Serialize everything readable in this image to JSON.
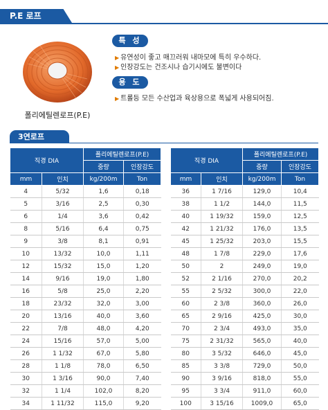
{
  "header": {
    "title": "P.E 로프"
  },
  "product": {
    "caption": "폴리에틸렌로프(P.E)"
  },
  "features": {
    "heading": "특 성",
    "bullets": [
      "유연성이 좋고 매끄러워 내마모에 특히 우수하다.",
      "인장강도는 건조시나 습기시에도 불변이다"
    ]
  },
  "usage": {
    "heading": "용 도",
    "bullets": [
      "트롤등 모든 수산업과 육상용으로 폭넓게 사용되어짐."
    ]
  },
  "section": {
    "title": "3연로프"
  },
  "table": {
    "headers": {
      "diameter": "직경 DIA",
      "material": "폴리에틸렌로프(P.E)",
      "weight": "중량",
      "strength": "인장강도",
      "mm": "mm",
      "inch": "인치",
      "weight_unit": "kg/200m",
      "strength_unit": "Ton"
    },
    "left_rows": [
      [
        "4",
        "5/32",
        "1,6",
        "0,18"
      ],
      [
        "5",
        "3/16",
        "2,5",
        "0,30"
      ],
      [
        "6",
        "1/4",
        "3,6",
        "0,42"
      ],
      [
        "8",
        "5/16",
        "6,4",
        "0,75"
      ],
      [
        "9",
        "3/8",
        "8,1",
        "0,91"
      ],
      [
        "10",
        "13/32",
        "10,0",
        "1,11"
      ],
      [
        "12",
        "15/32",
        "15,0",
        "1,20"
      ],
      [
        "14",
        "9/16",
        "19,0",
        "1,80"
      ],
      [
        "16",
        "5/8",
        "25,0",
        "2,20"
      ],
      [
        "18",
        "23/32",
        "32,0",
        "3,00"
      ],
      [
        "20",
        "13/16",
        "40,0",
        "3,60"
      ],
      [
        "22",
        "7/8",
        "48,0",
        "4,20"
      ],
      [
        "24",
        "15/16",
        "57,0",
        "5,00"
      ],
      [
        "26",
        "1 1/32",
        "67,0",
        "5,80"
      ],
      [
        "28",
        "1 1/8",
        "78,0",
        "6,50"
      ],
      [
        "30",
        "1 3/16",
        "90,0",
        "7,40"
      ],
      [
        "32",
        "1 1/4",
        "102,0",
        "8,20"
      ],
      [
        "34",
        "1 11/32",
        "115,0",
        "9,20"
      ]
    ],
    "right_rows": [
      [
        "36",
        "1 7/16",
        "129,0",
        "10,4"
      ],
      [
        "38",
        "1 1/2",
        "144,0",
        "11,5"
      ],
      [
        "40",
        "1 19/32",
        "159,0",
        "12,5"
      ],
      [
        "42",
        "1 21/32",
        "176,0",
        "13,5"
      ],
      [
        "45",
        "1 25/32",
        "203,0",
        "15,5"
      ],
      [
        "48",
        "1 7/8",
        "229,0",
        "17,6"
      ],
      [
        "50",
        "2",
        "249,0",
        "19,0"
      ],
      [
        "52",
        "2 1/16",
        "270,0",
        "20,2"
      ],
      [
        "55",
        "2 5/32",
        "300,0",
        "22,0"
      ],
      [
        "60",
        "2 3/8",
        "360,0",
        "26,0"
      ],
      [
        "65",
        "2 9/16",
        "425,0",
        "30,0"
      ],
      [
        "70",
        "2 3/4",
        "493,0",
        "35,0"
      ],
      [
        "75",
        "2 31/32",
        "565,0",
        "40,0"
      ],
      [
        "80",
        "3 5/32",
        "646,0",
        "45,0"
      ],
      [
        "85",
        "3 3/8",
        "729,0",
        "50,0"
      ],
      [
        "90",
        "3 9/16",
        "818,0",
        "55,0"
      ],
      [
        "95",
        "3 3/4",
        "911,0",
        "60,0"
      ],
      [
        "100",
        "3 15/16",
        "1009,0",
        "65,0"
      ]
    ]
  },
  "colors": {
    "header_blue": "#1b5aa3",
    "bullet_orange": "#e07a00",
    "rope_orange": "#e8742a"
  },
  "icons": {
    "bullet": "triangle-right-icon",
    "product": "rope-coil-image"
  }
}
